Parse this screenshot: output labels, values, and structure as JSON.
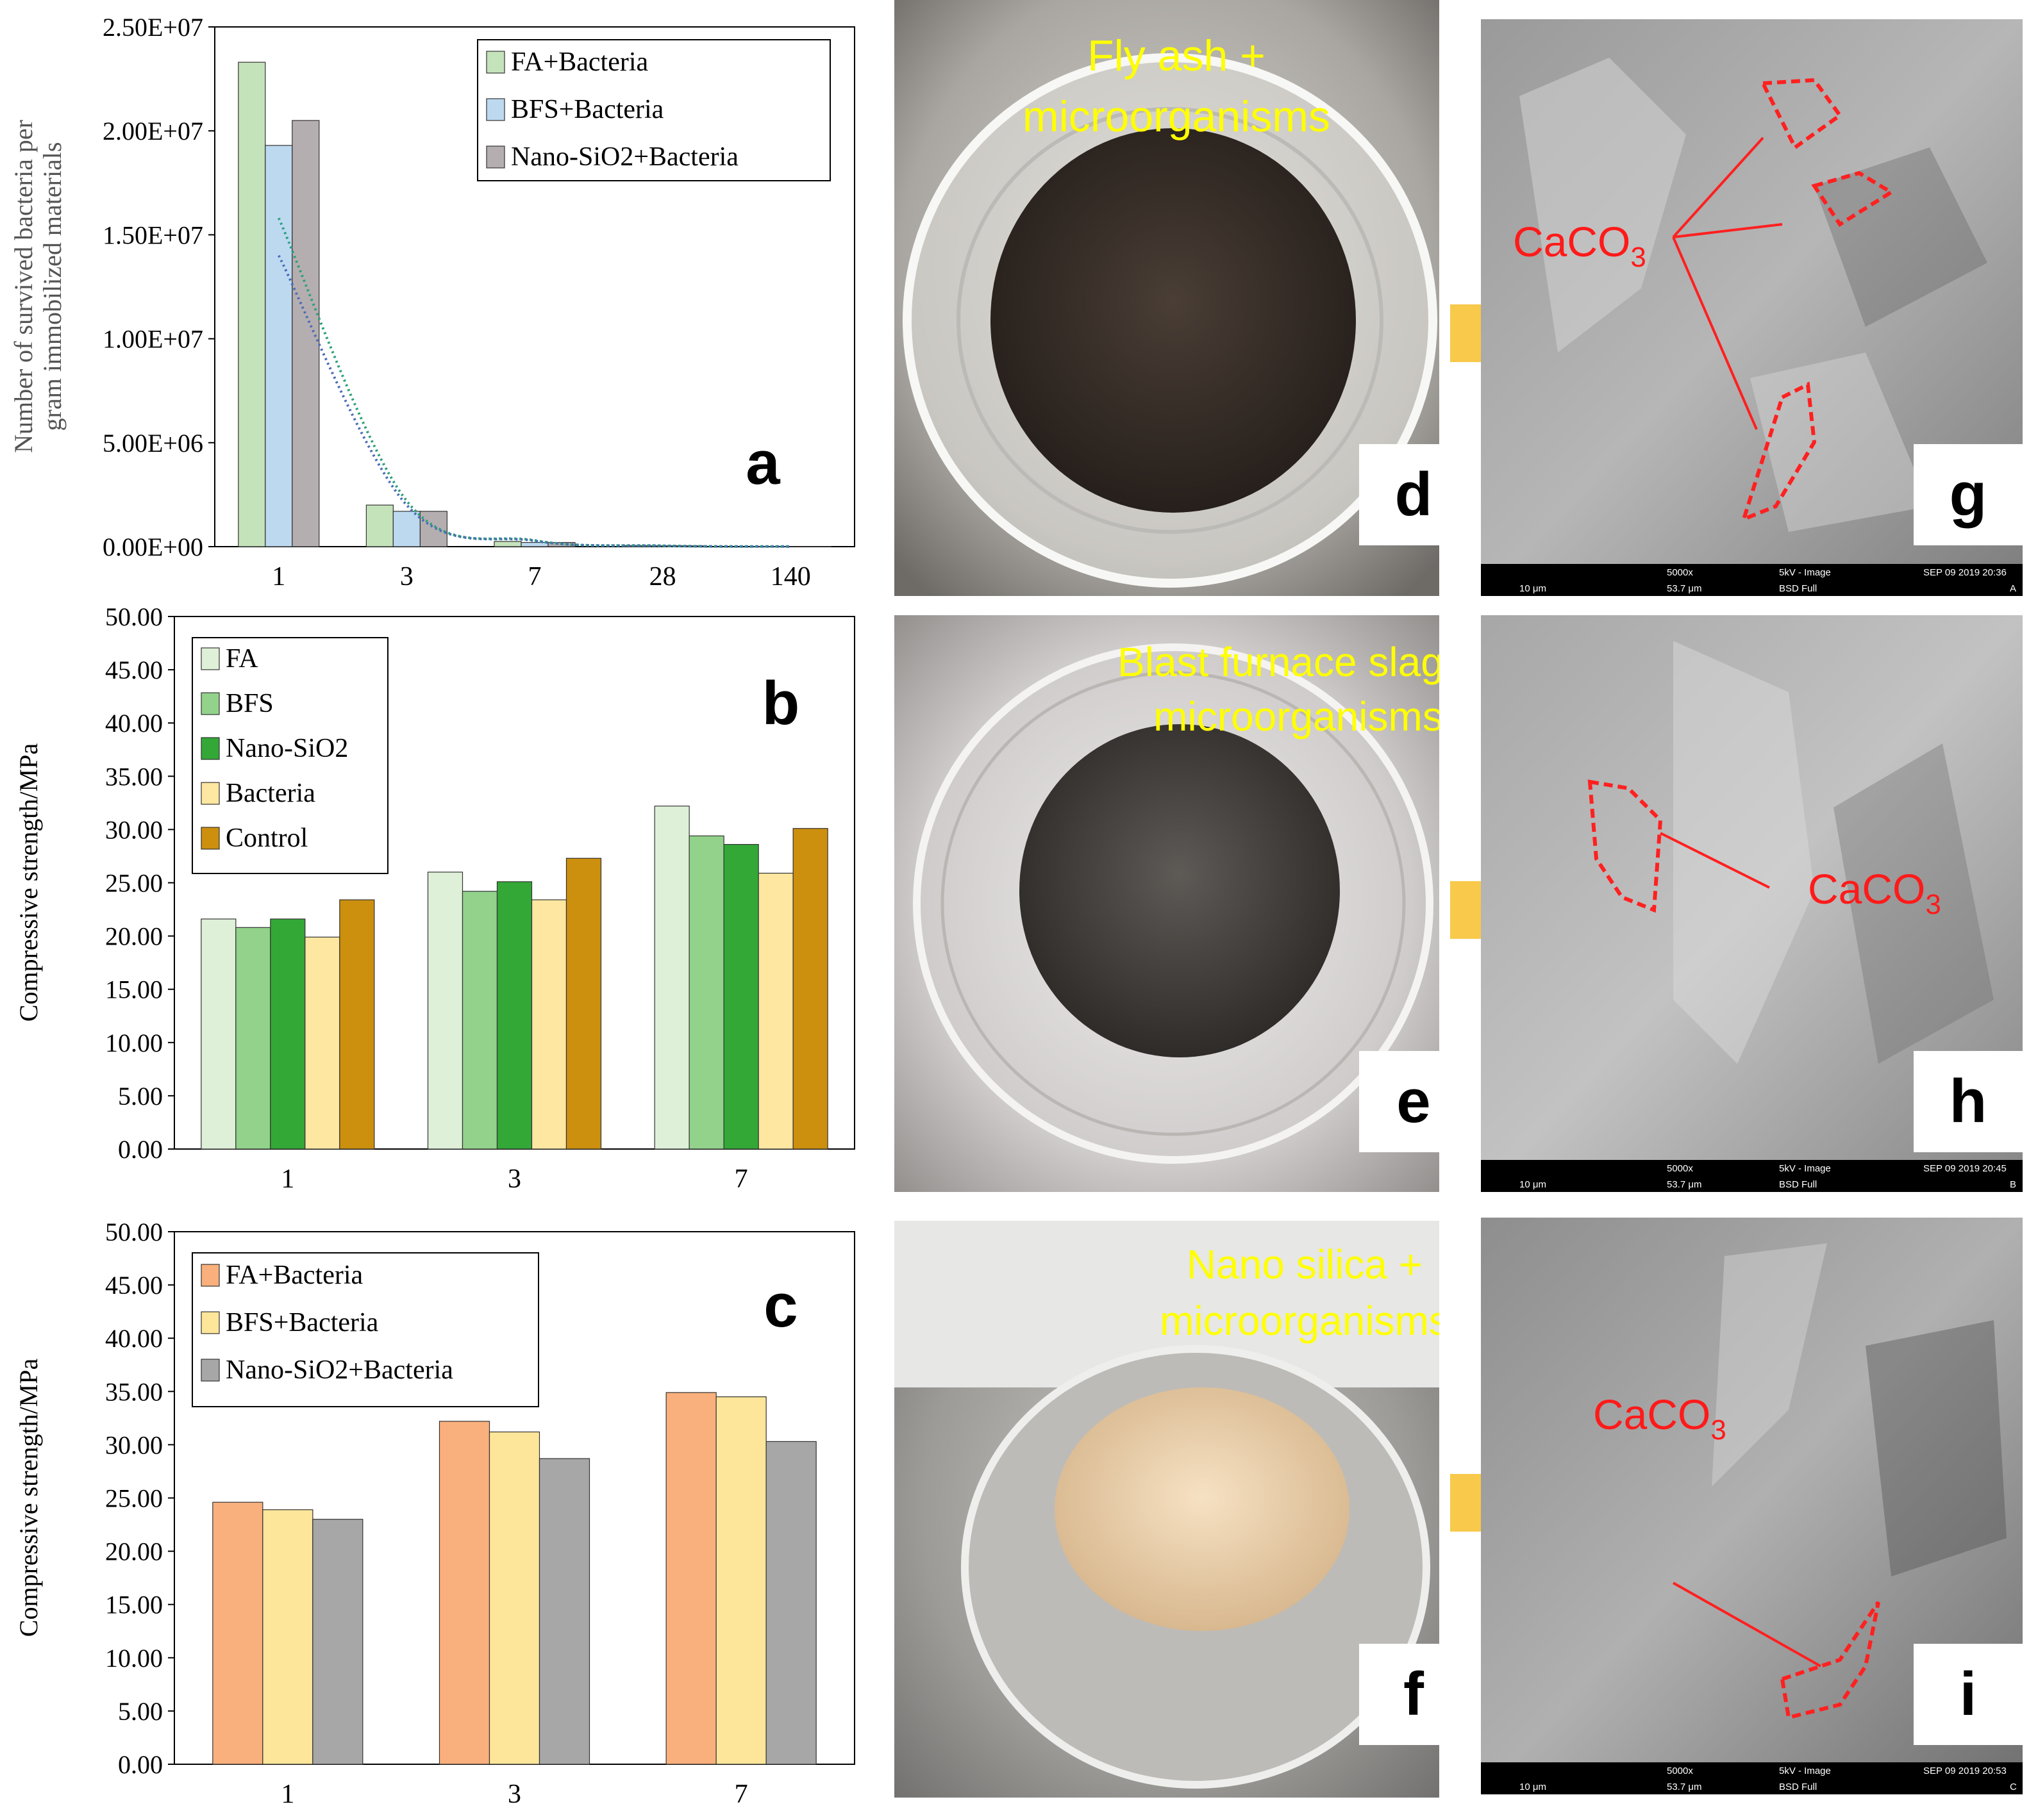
{
  "chart_data": [
    {
      "panel": "a",
      "type": "bar",
      "categories": [
        "1",
        "3",
        "7",
        "28",
        "140"
      ],
      "ylabel_lines": [
        "Number of  survived bacteria per",
        "gram immobilized materials"
      ],
      "yticks": [
        "0.00E+00",
        "5.00E+06",
        "1.00E+07",
        "1.50E+07",
        "2.00E+07",
        "2.50E+07"
      ],
      "ylim": [
        0,
        25000000
      ],
      "series": [
        {
          "name": "FA+Bacteria",
          "color": "#c5e3bb",
          "values": [
            23300000,
            2000000,
            250000,
            50000,
            10000
          ]
        },
        {
          "name": "BFS+Bacteria",
          "color": "#bcd9f0",
          "values": [
            19300000,
            1700000,
            200000,
            40000,
            8000
          ]
        },
        {
          "name": "Nano-SiO2+Bacteria",
          "color": "#b5aeb0",
          "values": [
            20500000,
            1700000,
            200000,
            40000,
            8000
          ]
        }
      ],
      "trendlines": [
        {
          "color": "#2ca07a",
          "values": [
            15800000,
            2200000,
            300000,
            45000,
            6000
          ]
        },
        {
          "color": "#4b6cb7",
          "values": [
            14000000,
            2000000,
            280000,
            40000,
            5000
          ]
        }
      ],
      "legend_position": "top-right",
      "panel_label": "a"
    },
    {
      "panel": "b",
      "type": "bar",
      "categories": [
        "1",
        "3",
        "7"
      ],
      "ylabel": "Compressive strength/MPa",
      "yticks": [
        "0.00",
        "5.00",
        "10.00",
        "15.00",
        "20.00",
        "25.00",
        "30.00",
        "35.00",
        "40.00",
        "45.00",
        "50.00"
      ],
      "ylim": [
        0,
        50
      ],
      "series": [
        {
          "name": "FA",
          "color": "#dff0d8",
          "values": [
            21.6,
            26.0,
            32.2
          ]
        },
        {
          "name": "BFS",
          "color": "#92d28b",
          "values": [
            20.8,
            24.2,
            29.4
          ]
        },
        {
          "name": "Nano-SiO2",
          "color": "#33a837",
          "values": [
            21.6,
            25.1,
            28.6
          ]
        },
        {
          "name": "Bacteria",
          "color": "#fde7a1",
          "values": [
            19.9,
            23.4,
            25.9
          ]
        },
        {
          "name": "Control",
          "color": "#cc8f0e",
          "values": [
            23.4,
            27.3,
            30.1
          ]
        }
      ],
      "legend_position": "top-left",
      "panel_label": "b"
    },
    {
      "panel": "c",
      "type": "bar",
      "categories": [
        "1",
        "3",
        "7"
      ],
      "ylabel": "Compressive strength/MPa",
      "yticks": [
        "0.00",
        "5.00",
        "10.00",
        "15.00",
        "20.00",
        "25.00",
        "30.00",
        "35.00",
        "40.00",
        "45.00",
        "50.00"
      ],
      "ylim": [
        0,
        50
      ],
      "series": [
        {
          "name": "FA+Bacteria",
          "color": "#f9b07c",
          "values": [
            24.6,
            32.2,
            34.9
          ]
        },
        {
          "name": "BFS+Bacteria",
          "color": "#fde69a",
          "values": [
            23.9,
            31.2,
            34.5
          ]
        },
        {
          "name": "Nano-SiO2+Bacteria",
          "color": "#a7a7a7",
          "values": [
            23.0,
            28.7,
            30.3
          ]
        }
      ],
      "legend_position": "top-left",
      "panel_label": "c"
    }
  ],
  "photos": {
    "d": {
      "caption_lines": [
        "Fly ash +",
        "microorganisms"
      ],
      "label": "d"
    },
    "e": {
      "caption_lines": [
        "Blast furnace slag +",
        "microorganisms"
      ],
      "label": "e"
    },
    "f": {
      "caption_lines": [
        "Nano silica +",
        "microorganisms"
      ],
      "label": "f"
    }
  },
  "sem": {
    "g": {
      "label": "g",
      "annotation": "CaCO",
      "subscript": "3",
      "mag": "5000x",
      "hv": "5kV - Image",
      "date": "SEP 09 2019 20:36",
      "scale": "10 μm",
      "fov": "53.7 μm",
      "det": "BSD Full",
      "id": "A"
    },
    "h": {
      "label": "h",
      "annotation": "CaCO",
      "subscript": "3",
      "mag": "5000x",
      "hv": "5kV - Image",
      "date": "SEP 09 2019 20:45",
      "scale": "10 μm",
      "fov": "53.7 μm",
      "det": "BSD Full",
      "id": "B"
    },
    "i": {
      "label": "i",
      "annotation": "CaCO",
      "subscript": "3",
      "mag": "5000x",
      "hv": "5kV - Image",
      "date": "SEP 09 2019 20:53",
      "scale": "10 μm",
      "fov": "53.7 μm",
      "det": "BSD Full",
      "id": "C"
    }
  }
}
